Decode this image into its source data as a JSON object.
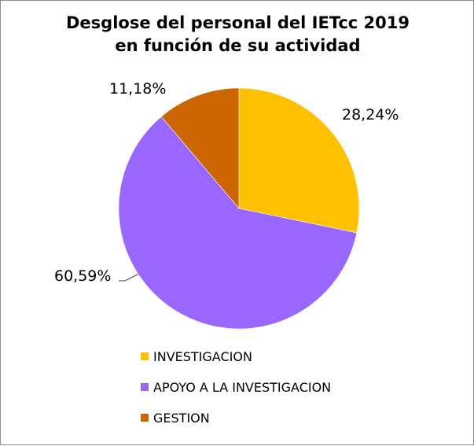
{
  "chart_data": {
    "type": "pie",
    "title_lines": [
      "Desglose del personal del IETcc 2019",
      "en función de su actividad"
    ],
    "slices": [
      {
        "name": "INVESTIGACION",
        "value": 28.24,
        "label": "28,24%",
        "color": "#FFC000"
      },
      {
        "name": "APOYO A LA INVESTIGACION",
        "value": 60.59,
        "label": "60,59%",
        "color": "#9966FF"
      },
      {
        "name": "GESTION",
        "value": 11.18,
        "label": "11,18%",
        "color": "#CC6600"
      }
    ],
    "legend_position": "bottom"
  }
}
